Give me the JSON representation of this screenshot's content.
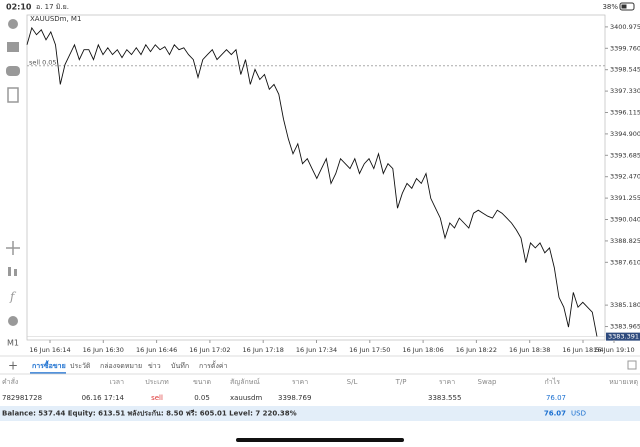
{
  "status_bar": {
    "time": "02:10",
    "date": "อ. 17 มิ.ย.",
    "battery": "38%"
  },
  "chart": {
    "symbol": "XAUUSDm, M1",
    "timeframe": "M1",
    "sell_label": "sell 0.05",
    "current_price": 3383.391,
    "ylim": [
      3383.2,
      3401.65
    ],
    "yticks": [
      {
        "value": 3400.975,
        "label": "3400.975"
      },
      {
        "value": 3399.76,
        "label": "3399.760"
      },
      {
        "value": 3398.545,
        "label": "3398.545"
      },
      {
        "value": 3397.33,
        "label": "3397.330"
      },
      {
        "value": 3396.115,
        "label": "3396.115"
      },
      {
        "value": 3394.9,
        "label": "3394.900"
      },
      {
        "value": 3393.685,
        "label": "3393.685"
      },
      {
        "value": 3392.47,
        "label": "3392.470"
      },
      {
        "value": 3391.255,
        "label": "3391.255"
      },
      {
        "value": 3390.04,
        "label": "3390.040"
      },
      {
        "value": 3388.825,
        "label": "3388.825"
      },
      {
        "value": 3387.61,
        "label": "3387.610"
      },
      {
        "value": 3385.18,
        "label": "3385.180"
      },
      {
        "value": 3383.965,
        "label": "3383.965"
      }
    ],
    "xticks": [
      "16 Jun 16:14",
      "16 Jun 16:30",
      "16 Jun 16:46",
      "16 Jun 17:02",
      "16 Jun 17:18",
      "16 Jun 17:34",
      "16 Jun 17:50",
      "16 Jun 18:06",
      "16 Jun 18:22",
      "16 Jun 18:38",
      "16 Jun 18:54",
      "16 Jun 19:10"
    ],
    "values": [
      3399.96,
      3400.92,
      3400.53,
      3400.81,
      3400.24,
      3400.69,
      3399.96,
      3397.71,
      3398.84,
      3399.4,
      3399.96,
      3399.12,
      3399.68,
      3399.68,
      3399.12,
      3399.96,
      3399.4,
      3399.79,
      3399.4,
      3399.68,
      3399.23,
      3399.68,
      3399.4,
      3399.79,
      3399.4,
      3399.96,
      3399.57,
      3399.96,
      3399.68,
      3399.85,
      3399.4,
      3399.96,
      3399.68,
      3399.79,
      3399.4,
      3399.12,
      3398.11,
      3399.12,
      3399.4,
      3399.68,
      3399.12,
      3399.4,
      3399.68,
      3399.4,
      3399.68,
      3398.27,
      3399.12,
      3397.71,
      3398.56,
      3397.99,
      3398.27,
      3397.43,
      3397.71,
      3397.15,
      3395.74,
      3394.62,
      3393.77,
      3394.34,
      3393.21,
      3393.49,
      3392.93,
      3392.37,
      3392.93,
      3393.49,
      3392.09,
      3392.65,
      3393.49,
      3393.21,
      3392.93,
      3393.49,
      3392.65,
      3393.21,
      3393.49,
      3392.93,
      3393.77,
      3392.65,
      3393.21,
      3392.93,
      3390.68,
      3391.53,
      3392.09,
      3391.81,
      3392.37,
      3392.09,
      3392.65,
      3391.24,
      3390.68,
      3390.12,
      3388.99,
      3389.84,
      3389.56,
      3390.12,
      3389.84,
      3389.56,
      3390.4,
      3390.57,
      3390.4,
      3390.23,
      3390.12,
      3390.57,
      3390.4,
      3390.12,
      3389.84,
      3389.45,
      3388.99,
      3387.59,
      3388.71,
      3388.43,
      3388.71,
      3388.15,
      3388.43,
      3387.31,
      3385.62,
      3385.06,
      3383.93,
      3385.9,
      3385.06,
      3385.34,
      3385.06,
      3384.78,
      3383.39
    ]
  },
  "tabs": [
    "การซื้อขาย",
    "ประวัติ",
    "กล่องจดหมาย",
    "ข่าว",
    "บันทึก",
    "การตั้งค่า"
  ],
  "table": {
    "header": [
      "คำสั่ง",
      "เวลา",
      "ประเภท",
      "ขนาด",
      "สัญลักษณ์",
      "ราคา",
      "S/L",
      "T/P",
      "ราคา",
      "Swap",
      "กำไร",
      "หมายเหตุ"
    ],
    "rows": [
      [
        "782981728",
        "06.16 17:14",
        "sell",
        0.05,
        "xauusdm",
        3398.769,
        null,
        null,
        3383.555,
        null,
        76.07,
        null
      ]
    ]
  },
  "footer": {
    "summary": "Balance: 537.44 Equity: 613.51 พลังประกัน: 8.50 ฟรี: 605.01 Level: 7 220.38%",
    "profit": 76.07,
    "currency": "USD"
  }
}
